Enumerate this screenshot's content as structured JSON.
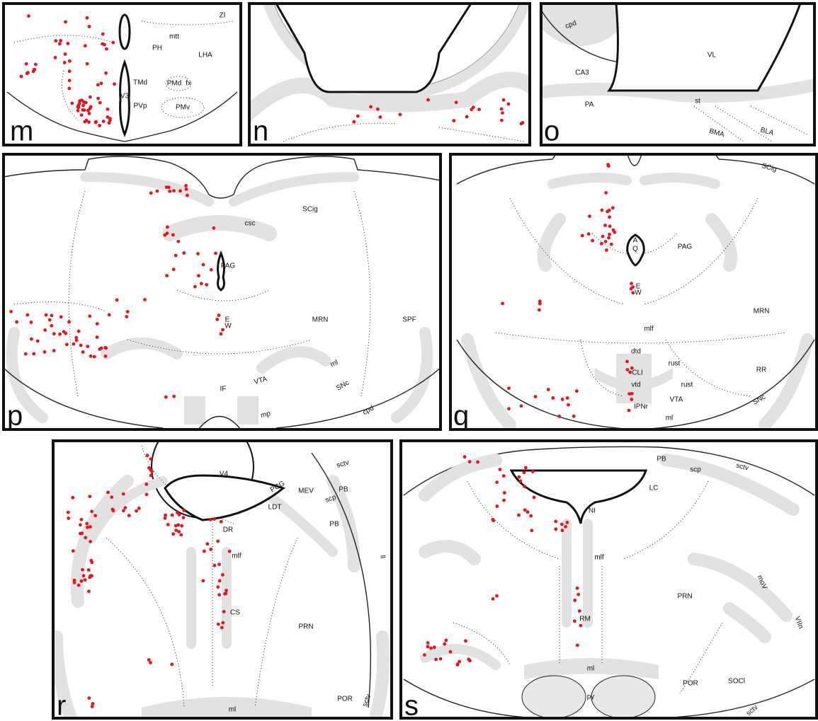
{
  "panels": [
    {
      "letter": "m",
      "labels": [
        "ZI",
        "mtt",
        "PH",
        "LHA",
        "TMd",
        "PMd",
        "fx",
        "V3",
        "PVp",
        "PMv"
      ]
    },
    {
      "letter": "n",
      "labels": []
    },
    {
      "letter": "o",
      "labels": [
        "cpd",
        "VL",
        "CA3",
        "PA",
        "st",
        "BMA",
        "BLA"
      ]
    },
    {
      "letter": "p",
      "labels": [
        "SCig",
        "csc",
        "PAG",
        "E",
        "W",
        "MRN",
        "SPF",
        "ml",
        "VTA",
        "SNc",
        "IF",
        "mp",
        "cpd"
      ]
    },
    {
      "letter": "q",
      "labels": [
        "SCig",
        "A",
        "Q",
        "PAG",
        "E",
        "W",
        "MRN",
        "mlf",
        "dtd",
        "rust",
        "CLI",
        "RR",
        "rust",
        "vtd",
        "VTA",
        "IPNr",
        "SNc",
        "ml"
      ]
    },
    {
      "letter": "r",
      "labels": [
        "V4",
        "sctv",
        "PCG",
        "MEV",
        "PB",
        "scp",
        "LDT",
        "ll",
        "PB",
        "DR",
        "mlf",
        "CS",
        "PRN",
        "POR",
        "sctv",
        "ml"
      ]
    },
    {
      "letter": "s",
      "labels": [
        "PB",
        "scp",
        "sctv",
        "LC",
        "NI",
        "mlf",
        "moV",
        "PRN",
        "RM",
        "VIIn",
        "ml",
        "POR",
        "SOCl",
        "sctv",
        "py"
      ]
    }
  ]
}
